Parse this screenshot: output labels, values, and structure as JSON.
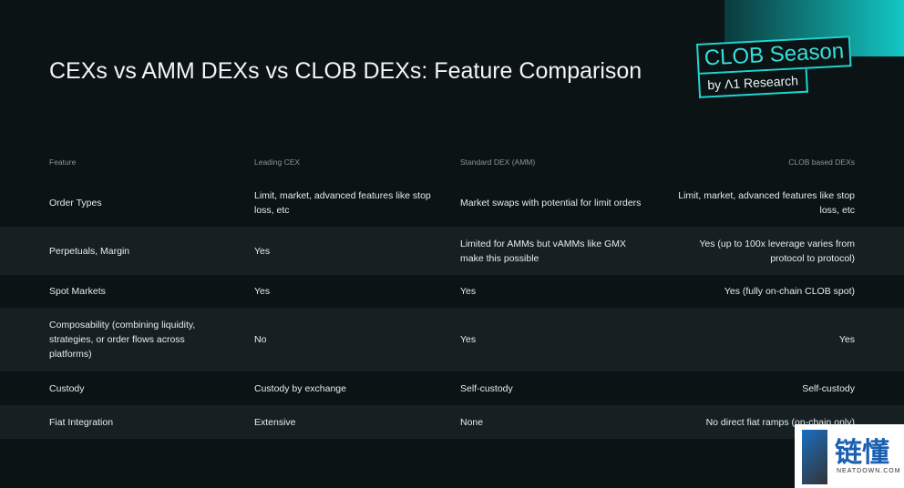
{
  "header": {
    "title": "CEXs vs AMM DEXs vs CLOB DEXs: Feature Comparison"
  },
  "badge": {
    "title": "CLOB Season",
    "by": "by Λ1 Research"
  },
  "table": {
    "columns": [
      "Feature",
      "Leading CEX",
      "Standard DEX (AMM)",
      "CLOB based DEXs"
    ],
    "rows": [
      [
        "Order Types",
        "Limit, market, advanced features like stop loss, etc",
        "Market swaps with potential for limit orders",
        "Limit, market, advanced features like stop loss, etc"
      ],
      [
        "Perpetuals, Margin",
        "Yes",
        "Limited for AMMs but vAMMs like GMX make this possible",
        "Yes (up to 100x leverage varies from protocol to protocol)"
      ],
      [
        "Spot Markets",
        "Yes",
        "Yes",
        "Yes (fully on-chain CLOB spot)"
      ],
      [
        "Composability (combining liquidity, strategies, or order flows across platforms)",
        "No",
        "Yes",
        "Yes"
      ],
      [
        "Custody",
        "Custody by exchange",
        "Self-custody",
        "Self-custody"
      ],
      [
        "Fiat Integration",
        "Extensive",
        "None",
        "No direct fiat ramps (on-chain only)"
      ]
    ]
  },
  "watermark": {
    "logo": "链懂",
    "site": "NEATDOWN.COM"
  }
}
